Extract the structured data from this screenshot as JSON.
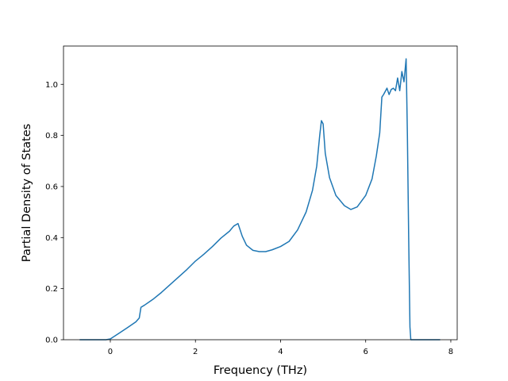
{
  "chart_data": {
    "type": "line",
    "title": "",
    "xlabel": "Frequency (THz)",
    "ylabel": "Partial Density of States",
    "xlim": [
      -1.1,
      8.15
    ],
    "ylim": [
      0,
      1.15
    ],
    "xticks": [
      0,
      2,
      4,
      6,
      8
    ],
    "yticks": [
      0.0,
      0.2,
      0.4,
      0.6,
      0.8,
      1.0
    ],
    "xtick_labels": [
      "0",
      "2",
      "4",
      "6",
      "8"
    ],
    "ytick_labels": [
      "0.0",
      "0.2",
      "0.4",
      "0.6",
      "0.8",
      "1.0"
    ],
    "grid": false,
    "legend": "none",
    "line_color": "#1f77b4",
    "series": [
      {
        "x": [
          -0.72,
          -0.1,
          0.0,
          0.2,
          0.4,
          0.6,
          0.68,
          0.72,
          0.8,
          1.0,
          1.2,
          1.4,
          1.6,
          1.8,
          2.0,
          2.2,
          2.4,
          2.6,
          2.8,
          2.9,
          3.0,
          3.1,
          3.2,
          3.35,
          3.5,
          3.65,
          3.8,
          4.0,
          4.2,
          4.4,
          4.6,
          4.75,
          4.85,
          4.92,
          4.96,
          5.0,
          5.05,
          5.15,
          5.3,
          5.5,
          5.65,
          5.8,
          6.0,
          6.15,
          6.25,
          6.33,
          6.38,
          6.42,
          6.5,
          6.55,
          6.6,
          6.65,
          6.7,
          6.75,
          6.8,
          6.85,
          6.9,
          6.95,
          6.98,
          7.01,
          7.04,
          7.06,
          7.08,
          7.3,
          7.75
        ],
        "y": [
          0.0,
          0.0,
          0.003,
          0.025,
          0.047,
          0.07,
          0.085,
          0.127,
          0.135,
          0.158,
          0.185,
          0.215,
          0.245,
          0.275,
          0.308,
          0.335,
          0.365,
          0.398,
          0.425,
          0.445,
          0.455,
          0.405,
          0.37,
          0.35,
          0.345,
          0.345,
          0.352,
          0.365,
          0.385,
          0.43,
          0.5,
          0.585,
          0.68,
          0.8,
          0.858,
          0.845,
          0.73,
          0.635,
          0.565,
          0.525,
          0.51,
          0.52,
          0.565,
          0.63,
          0.72,
          0.81,
          0.95,
          0.96,
          0.985,
          0.96,
          0.98,
          0.985,
          0.975,
          1.025,
          0.975,
          1.05,
          1.01,
          1.1,
          0.8,
          0.4,
          0.05,
          0.0,
          0.0,
          0.0,
          0.0
        ]
      }
    ]
  }
}
